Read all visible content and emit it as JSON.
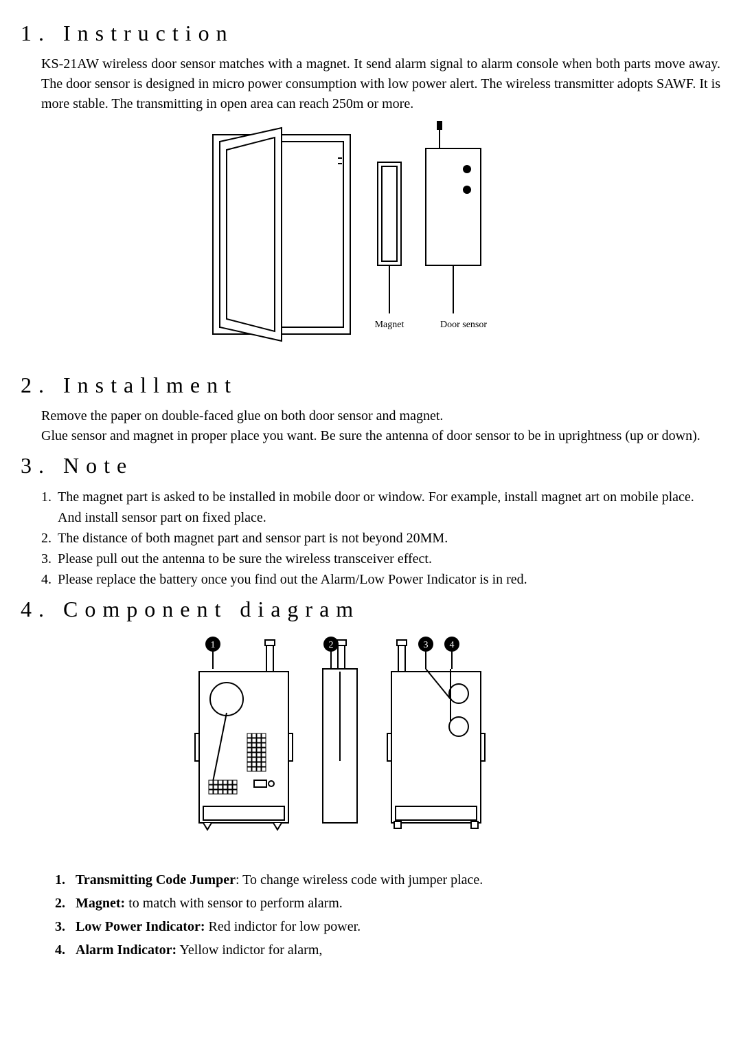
{
  "sections": {
    "s1": {
      "num": "1.",
      "title": "Instruction"
    },
    "s2": {
      "num": "2.",
      "title": "Installment"
    },
    "s3": {
      "num": "3.",
      "title": "Note"
    },
    "s4": {
      "num": "4.",
      "title": "Component diagram"
    }
  },
  "instruction_body": "KS-21AW wireless door sensor matches with a magnet. It send alarm signal to alarm console when both parts move away. The door sensor is designed in micro power consumption with low power alert. The wireless transmitter adopts SAWF. It is more stable. The transmitting in open area can reach 250m or more.",
  "installment_body": "Remove the paper on double-faced glue on both door sensor and magnet.\nGlue sensor and magnet in proper place you want. Be sure the antenna of door sensor to be in uprightness (up or down).",
  "notes": [
    {
      "n": "1.",
      "t": "The magnet part is asked to be installed in mobile door or window. For example, install magnet art on mobile place. And install sensor part on fixed place."
    },
    {
      "n": "2.",
      "t": "The distance of both magnet part and sensor part is not beyond 20MM."
    },
    {
      "n": "3.",
      "t": "Please pull out the antenna to be sure the wireless transceiver effect."
    },
    {
      "n": "4.",
      "t": "Please replace the battery once you find out the Alarm/Low Power Indicator is in red."
    }
  ],
  "components": [
    {
      "n": "1.",
      "label": "Transmitting Code Jumper",
      "desc": ": To change wireless code with jumper place."
    },
    {
      "n": "2.",
      "label": "Magnet:",
      "desc": " to match with sensor to perform alarm."
    },
    {
      "n": "3.",
      "label": "Low Power Indicator:",
      "desc": "  Red indictor for low power."
    },
    {
      "n": "4.",
      "label": "Alarm Indicator:",
      "desc": " Yellow indictor for alarm,"
    }
  ],
  "diagram1": {
    "labels": {
      "magnet": "Magnet",
      "door_sensor": "Door sensor"
    },
    "stroke": "#000000",
    "stroke_width": 2,
    "label_font_size": 14
  },
  "diagram2": {
    "callouts": [
      "1",
      "2",
      "3",
      "4"
    ],
    "stroke": "#000000",
    "stroke_width": 2,
    "callout_bg": "#000000",
    "callout_fg": "#ffffff",
    "callout_radius": 11
  }
}
